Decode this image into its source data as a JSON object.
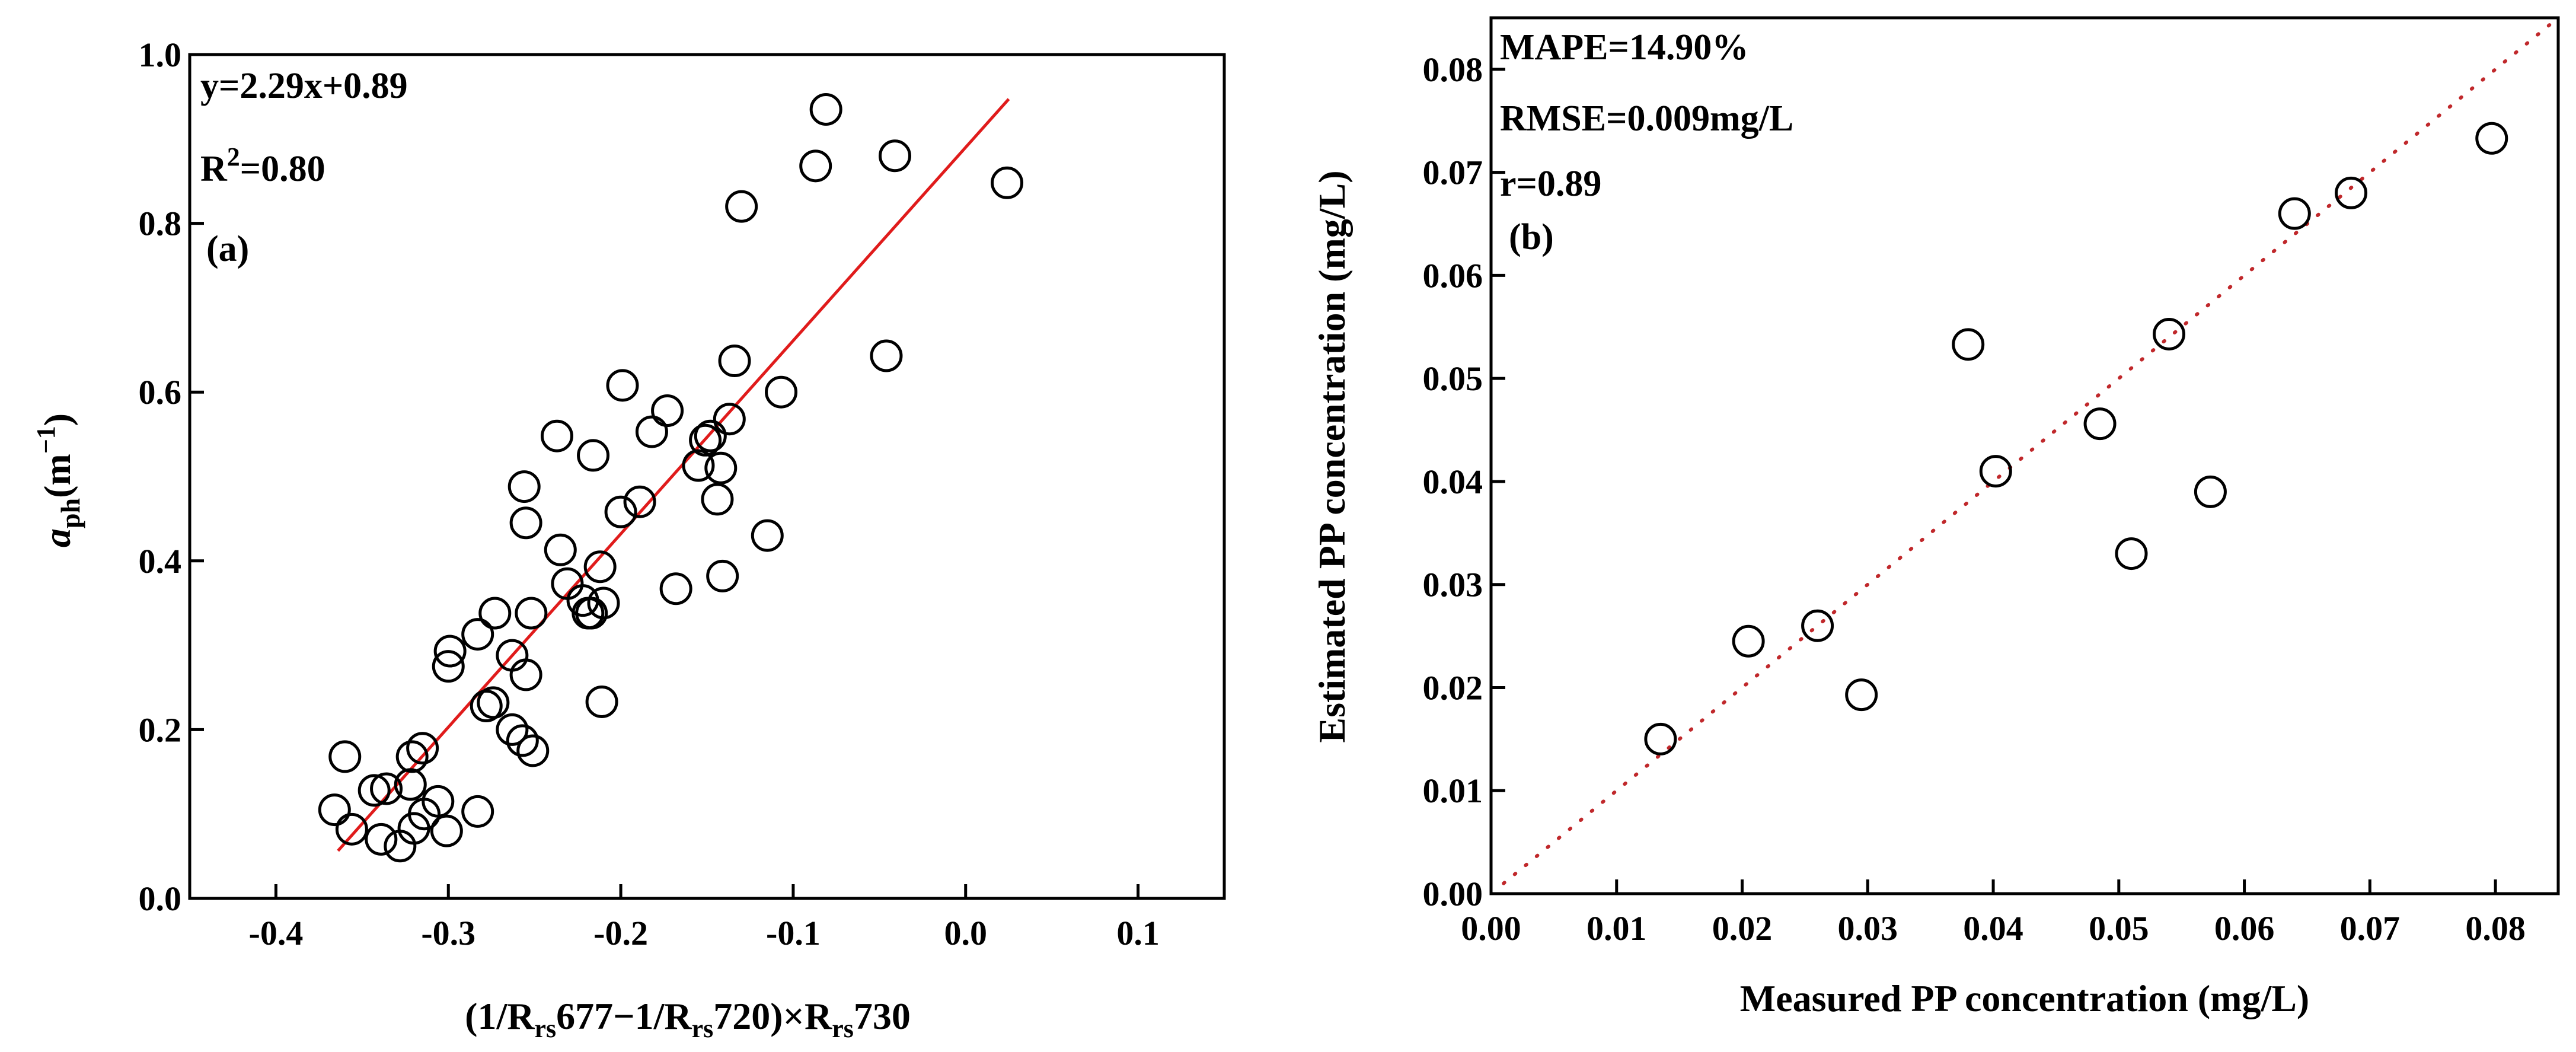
{
  "chart_data": [
    {
      "type": "scatter",
      "panel_label": "(a)",
      "title": "",
      "xlabel": "(1/Rrs677−1/Rrs720)×Rrs730",
      "xlabel_parts": {
        "p1": "(1/R",
        "s1": "rs",
        "p2": "677−1/R",
        "s2": "rs",
        "p3": "720)×R",
        "s3": "rs",
        "p4": "730"
      },
      "ylabel": "aph(m−1)",
      "ylabel_parts": {
        "main": "a",
        "sub": "ph",
        "unit": "(m",
        "sup": "−1",
        "close": ")"
      },
      "xlim": [
        -0.45,
        0.15
      ],
      "ylim": [
        0.0,
        1.0
      ],
      "xticks": [
        -0.4,
        -0.3,
        -0.2,
        -0.1,
        0.0,
        0.1
      ],
      "xtick_labels": [
        "-0.4",
        "-0.3",
        "-0.2",
        "-0.1",
        "0.0",
        "0.1"
      ],
      "yticks": [
        0.0,
        0.2,
        0.4,
        0.6,
        0.8,
        1.0
      ],
      "ytick_labels": [
        "0.0",
        "0.2",
        "0.4",
        "0.6",
        "0.8",
        "1.0"
      ],
      "annotations": {
        "equation": "y=2.29x+0.89",
        "r2_main": "R",
        "r2_sup": "2",
        "r2_value": "=0.80"
      },
      "fit_line": {
        "slope": 2.29,
        "intercept": 0.89,
        "x_range": [
          -0.364,
          0.025
        ],
        "color": "#e01b1b"
      },
      "series": [
        {
          "name": "samples",
          "marker": "open-circle",
          "points": [
            [
              -0.36,
              0.168
            ],
            [
              -0.366,
              0.105
            ],
            [
              -0.356,
              0.082
            ],
            [
              -0.343,
              0.128
            ],
            [
              -0.339,
              0.07
            ],
            [
              -0.336,
              0.13
            ],
            [
              -0.328,
              0.062
            ],
            [
              -0.322,
              0.135
            ],
            [
              -0.321,
              0.168
            ],
            [
              -0.32,
              0.083
            ],
            [
              -0.315,
              0.178
            ],
            [
              -0.314,
              0.1
            ],
            [
              -0.306,
              0.115
            ],
            [
              -0.301,
              0.08
            ],
            [
              -0.3,
              0.275
            ],
            [
              -0.299,
              0.293
            ],
            [
              -0.283,
              0.313
            ],
            [
              -0.283,
              0.103
            ],
            [
              -0.278,
              0.228
            ],
            [
              -0.274,
              0.232
            ],
            [
              -0.273,
              0.338
            ],
            [
              -0.263,
              0.288
            ],
            [
              -0.263,
              0.2
            ],
            [
              -0.257,
              0.187
            ],
            [
              -0.256,
              0.488
            ],
            [
              -0.255,
              0.445
            ],
            [
              -0.255,
              0.265
            ],
            [
              -0.252,
              0.338
            ],
            [
              -0.251,
              0.175
            ],
            [
              -0.237,
              0.548
            ],
            [
              -0.235,
              0.413
            ],
            [
              -0.231,
              0.373
            ],
            [
              -0.222,
              0.353
            ],
            [
              -0.219,
              0.338
            ],
            [
              -0.217,
              0.338
            ],
            [
              -0.216,
              0.525
            ],
            [
              -0.212,
              0.393
            ],
            [
              -0.211,
              0.233
            ],
            [
              -0.21,
              0.35
            ],
            [
              -0.199,
              0.608
            ],
            [
              -0.2,
              0.458
            ],
            [
              -0.189,
              0.47
            ],
            [
              -0.182,
              0.553
            ],
            [
              -0.173,
              0.578
            ],
            [
              -0.168,
              0.367
            ],
            [
              -0.155,
              0.513
            ],
            [
              -0.151,
              0.543
            ],
            [
              -0.148,
              0.548
            ],
            [
              -0.144,
              0.473
            ],
            [
              -0.142,
              0.51
            ],
            [
              -0.141,
              0.382
            ],
            [
              -0.137,
              0.568
            ],
            [
              -0.134,
              0.637
            ],
            [
              -0.13,
              0.82
            ],
            [
              -0.115,
              0.43
            ],
            [
              -0.107,
              0.6
            ],
            [
              -0.087,
              0.868
            ],
            [
              -0.081,
              0.935
            ],
            [
              -0.046,
              0.643
            ],
            [
              -0.041,
              0.88
            ],
            [
              0.024,
              0.848
            ]
          ]
        }
      ]
    },
    {
      "type": "scatter",
      "panel_label": "(b)",
      "title": "",
      "xlabel": "Measured PP concentration (mg/L)",
      "ylabel": "Estimated PP concentration (mg/L)",
      "xlim": [
        0.0,
        0.085
      ],
      "ylim": [
        0.0,
        0.085
      ],
      "xticks": [
        0.0,
        0.01,
        0.02,
        0.03,
        0.04,
        0.05,
        0.06,
        0.07,
        0.08
      ],
      "xtick_labels": [
        "0.00",
        "0.01",
        "0.02",
        "0.03",
        "0.04",
        "0.05",
        "0.06",
        "0.07",
        "0.08"
      ],
      "yticks": [
        0.0,
        0.01,
        0.02,
        0.03,
        0.04,
        0.05,
        0.06,
        0.07,
        0.08
      ],
      "ytick_labels": [
        "0.00",
        "0.01",
        "0.02",
        "0.03",
        "0.04",
        "0.05",
        "0.06",
        "0.07",
        "0.08"
      ],
      "annotations": {
        "mape": "MAPE=14.90%",
        "rmse": "RMSE=0.009mg/L",
        "r": "r=0.89"
      },
      "reference_line": {
        "type": "1:1",
        "style": "dotted",
        "color": "#c0282b"
      },
      "series": [
        {
          "name": "samples",
          "marker": "open-circle",
          "points": [
            [
              0.0135,
              0.015
            ],
            [
              0.0205,
              0.0245
            ],
            [
              0.026,
              0.026
            ],
            [
              0.0295,
              0.0193
            ],
            [
              0.038,
              0.0533
            ],
            [
              0.0402,
              0.041
            ],
            [
              0.0485,
              0.0456
            ],
            [
              0.051,
              0.033
            ],
            [
              0.054,
              0.0543
            ],
            [
              0.0573,
              0.039
            ],
            [
              0.064,
              0.066
            ],
            [
              0.0685,
              0.068
            ],
            [
              0.0797,
              0.0733
            ]
          ]
        }
      ]
    }
  ]
}
